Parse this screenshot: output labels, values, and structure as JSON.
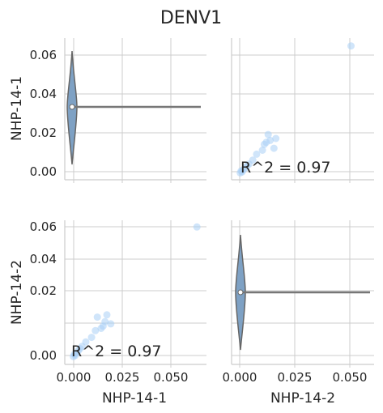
{
  "title": "DENV1",
  "chart_data": {
    "type": "scatter",
    "variables": [
      "NHP-14-1",
      "NHP-14-2"
    ],
    "annotation_text": "R^2 = 0.97",
    "x_ticks": [
      "0.000",
      "0.025",
      "0.050"
    ],
    "y_ticks": [
      "0.00",
      "0.02",
      "0.04",
      "0.06"
    ],
    "xlim": [
      -0.004,
      0.07
    ],
    "ylim_row1": [
      -0.003,
      0.069
    ],
    "ylim_row2": [
      -0.003,
      0.061
    ],
    "diagonal": [
      {
        "variable": "NHP-14-1",
        "median": 0.0325,
        "min": 0.004,
        "max": 0.061
      },
      {
        "variable": "NHP-14-2",
        "median": 0.029,
        "min": 0.003,
        "max": 0.055
      }
    ],
    "points": {
      "NHP-14-1": [
        0.0005,
        0.001,
        0.0015,
        0.002,
        0.003,
        0.004,
        0.005,
        0.007,
        0.01,
        0.012,
        0.013,
        0.015,
        0.016,
        0.017,
        0.018,
        0.02,
        0.065
      ],
      "NHP-14-2": [
        0.0005,
        0.0015,
        0.001,
        0.002,
        0.003,
        0.004,
        0.005,
        0.007,
        0.009,
        0.012,
        0.018,
        0.013,
        0.014,
        0.016,
        0.019,
        0.015,
        0.058
      ]
    }
  }
}
